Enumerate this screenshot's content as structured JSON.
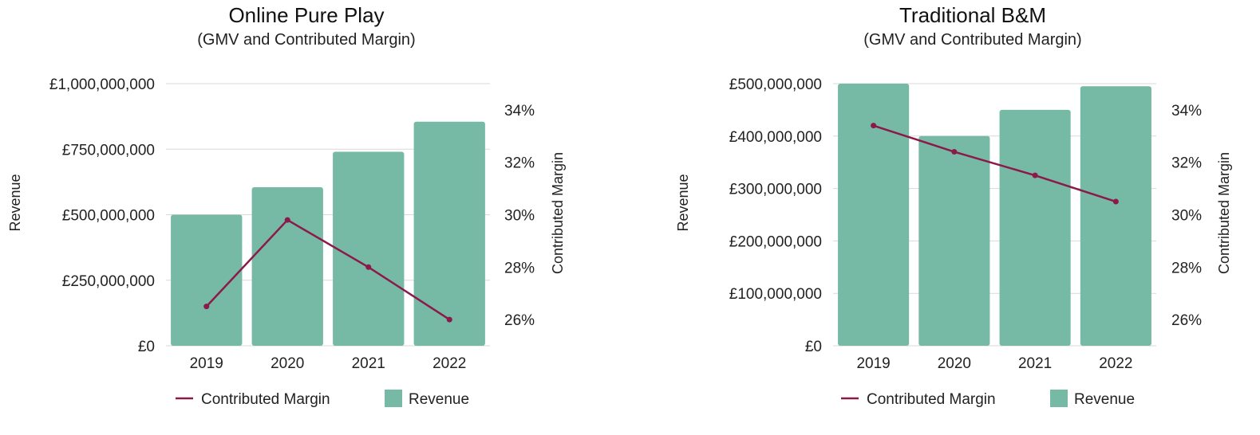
{
  "chart_data": [
    {
      "type": "bar",
      "title": "Online Pure Play",
      "subtitle": "(GMV and Contributed Margin)",
      "categories": [
        "2019",
        "2020",
        "2021",
        "2022"
      ],
      "ylabel": "Revenue",
      "y2label": "Contributed Margin",
      "ylim": [
        0,
        1000000000
      ],
      "yticks": [
        0,
        250000000,
        500000000,
        750000000,
        1000000000
      ],
      "ytick_labels": [
        "£0",
        "£250,000,000",
        "£500,000,000",
        "£750,000,000",
        "£1,000,000,000"
      ],
      "y2lim": [
        25,
        35
      ],
      "y2ticks": [
        26,
        28,
        30,
        32,
        34
      ],
      "y2tick_labels": [
        "26%",
        "28%",
        "30%",
        "32%",
        "34%"
      ],
      "series": [
        {
          "name": "Revenue",
          "type": "bar",
          "axis": "left",
          "color": "#76b9a4",
          "values": [
            500000000,
            605000000,
            740000000,
            855000000
          ]
        },
        {
          "name": "Contributed Margin",
          "type": "line",
          "axis": "right",
          "color": "#8b1a4a",
          "values": [
            26.5,
            29.8,
            28.0,
            26.0
          ]
        }
      ],
      "legend": "bottom",
      "grid": true
    },
    {
      "type": "bar",
      "title": "Traditional B&M",
      "subtitle": "(GMV and Contributed Margin)",
      "categories": [
        "2019",
        "2020",
        "2021",
        "2022"
      ],
      "ylabel": "Revenue",
      "y2label": "Contributed Margin",
      "ylim": [
        0,
        500000000
      ],
      "yticks": [
        0,
        100000000,
        200000000,
        300000000,
        400000000,
        500000000
      ],
      "ytick_labels": [
        "£0",
        "£100,000,000",
        "£200,000,000",
        "£300,000,000",
        "£400,000,000",
        "£500,000,000"
      ],
      "y2lim": [
        25,
        35
      ],
      "y2ticks": [
        26,
        28,
        30,
        32,
        34
      ],
      "y2tick_labels": [
        "26%",
        "28%",
        "30%",
        "32%",
        "34%"
      ],
      "series": [
        {
          "name": "Revenue",
          "type": "bar",
          "axis": "left",
          "color": "#76b9a4",
          "values": [
            500000000,
            400000000,
            450000000,
            495000000
          ]
        },
        {
          "name": "Contributed Margin",
          "type": "line",
          "axis": "right",
          "color": "#8b1a4a",
          "values": [
            33.4,
            32.4,
            31.5,
            30.5
          ]
        }
      ],
      "legend": "bottom",
      "grid": true
    }
  ]
}
